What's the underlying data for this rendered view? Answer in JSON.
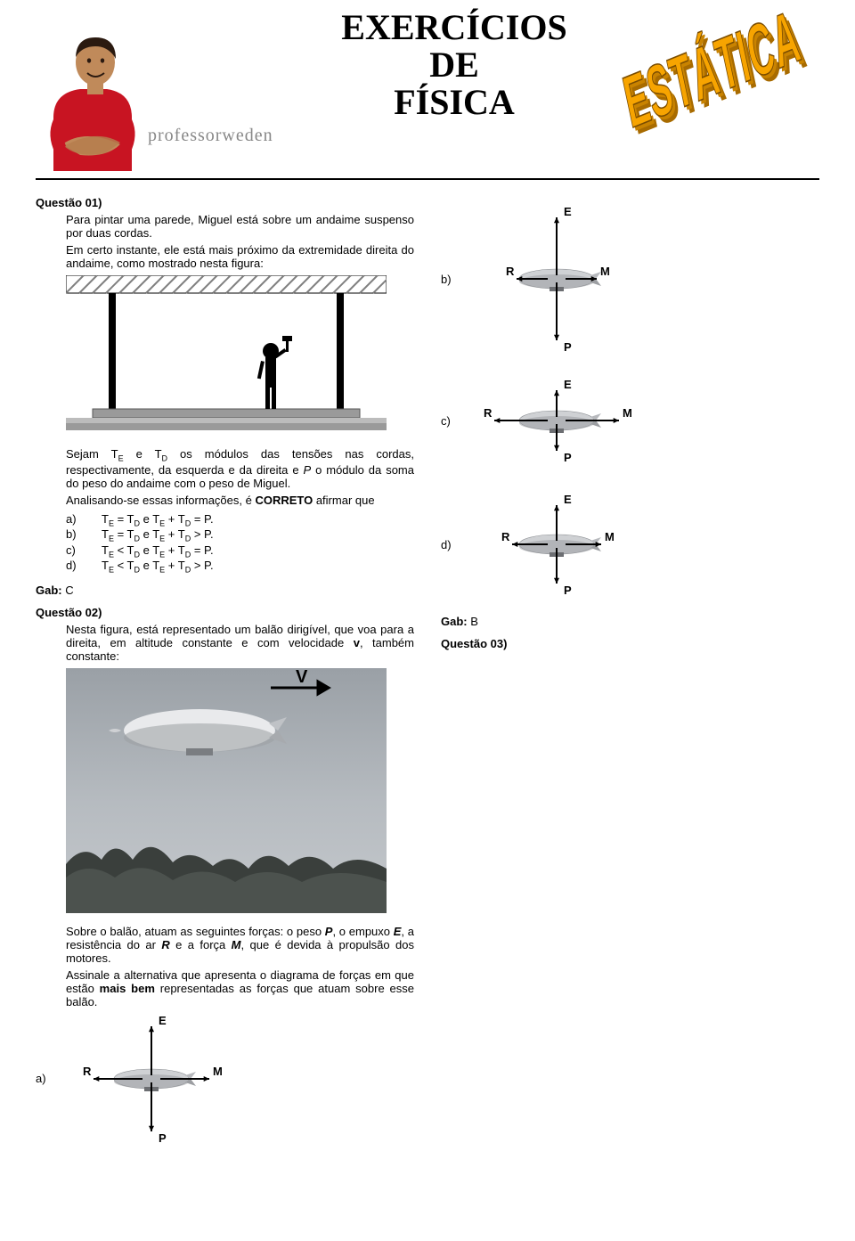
{
  "header": {
    "brand": "professorweden",
    "title_line1": "EXERCÍCIOS",
    "title_line2": "DE",
    "title_line3": "FÍSICA",
    "wordart": "ESTÁTICA",
    "colors": {
      "shirt": "#c81422",
      "skin": "#c08a5a",
      "hair": "#2b1a10",
      "wordart_fill": "#f7a400",
      "wordart_side": "#a86b00"
    }
  },
  "q1": {
    "label": "Questão 01)",
    "p1": "Para pintar uma parede, Miguel está sobre um andaime suspenso por duas cordas.",
    "p2": "Em certo instante, ele está mais próximo da extremidade direita do andaime, como mostrado nesta figura:",
    "p3_a": "Sejam T",
    "p3_b": " e T",
    "p3_c": " os módulos das tensões nas cordas, respectivamente, da esquerda e da direita e ",
    "p3_d": " o módulo da soma do peso do andaime com o peso de Miguel.",
    "p4": "Analisando-se essas informações, é ",
    "p4_bold": "CORRETO",
    "p4_end": " afirmar que",
    "opts": {
      "a": "Tᴱ = Tᴰ e Tᴱ + Tᴰ = P.",
      "b": "Tᴱ = Tᴰ e Tᴱ + Tᴰ > P.",
      "c": "Tᴱ < Tᴰ e Tᴱ + Tᴰ = P.",
      "d": "Tᴱ < Tᴰ e Tᴱ + Tᴰ > P."
    },
    "gab_label": "Gab:",
    "gab": "C",
    "scaffold": {
      "ceiling_hatch_color": "#808080",
      "rope_color": "#000000",
      "plank_color": "#9a9a9a",
      "ground_stripe_light": "#bcbcbc",
      "worker_color": "#000000"
    }
  },
  "q2": {
    "label": "Questão 02)",
    "p1_a": "Nesta figura, está representado um balão dirigível, que voa para a direita, em altitude constante e com velocidade ",
    "p1_b": ", também constante:",
    "p2_a": "Sobre o balão, atuam as seguintes forças: o peso ",
    "p2_b": ", o empuxo ",
    "p2_c": ", a resistência do ar ",
    "p2_d": " e a força ",
    "p2_e": ", que é devida à propulsão dos motores.",
    "p3_a": "Assinale a alternativa que apresenta o diagrama de forças em que estão ",
    "p3_bold": "mais bem",
    "p3_b": " representadas as forças que atuam sobre esse balão.",
    "gab_label": "Gab:",
    "gab": "B",
    "photo": {
      "sky_top": "#9aa0a6",
      "sky_mid": "#b6bbc0",
      "sky_low": "#c4c8cc",
      "tree_dark": "#3a3f3c",
      "tree_mid": "#4c524e",
      "balloon_body": "#e9eaec",
      "balloon_shade": "#9a9ea3",
      "arrow_color": "#000000",
      "arrow_label": "V"
    }
  },
  "q3": {
    "label": "Questão 03)"
  },
  "force_labels": {
    "E": "E",
    "P": "P",
    "R": "R",
    "M": "M"
  },
  "diagrams": {
    "palette": {
      "arrow": "#000000",
      "blimp_body": "#cfd1d4",
      "blimp_shade": "#95989c",
      "blimp_dark": "#6c6e72"
    },
    "a": {
      "letter": "a)",
      "E": 55,
      "P": 55,
      "R": 55,
      "M": 55
    },
    "b": {
      "letter": "b)",
      "E": 65,
      "P": 65,
      "R": 35,
      "M": 35
    },
    "c": {
      "letter": "c)",
      "E": 30,
      "P": 30,
      "R": 60,
      "M": 60
    },
    "d": {
      "letter": "d)",
      "E": 40,
      "P": 40,
      "R": 40,
      "M": 40
    }
  }
}
